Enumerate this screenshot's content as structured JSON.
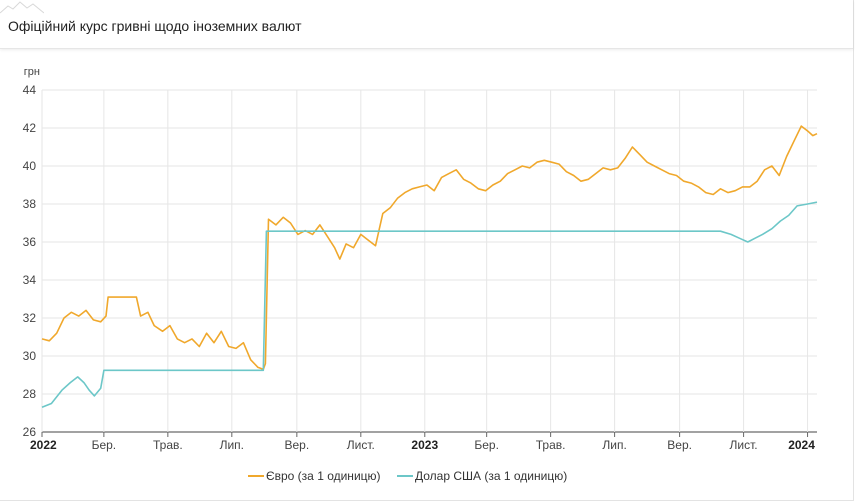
{
  "header": {
    "title": "Офіційний курс гривні щодо іноземних валют"
  },
  "colors": {
    "eur": "#f0a82c",
    "usd": "#6cc7c8",
    "grid": "#e6e6e6",
    "axis": "#444444"
  },
  "chart_data": {
    "type": "line",
    "title": "Офіційний курс гривні щодо іноземних валют",
    "ylabel": "грн",
    "xlabel": "",
    "ylim": [
      26,
      44
    ],
    "yticks": [
      26,
      28,
      30,
      32,
      34,
      36,
      38,
      40,
      42,
      44
    ],
    "xlim": [
      "2022-01-01",
      "2024-01-10"
    ],
    "xticks": [
      {
        "date": "2022-01-01",
        "label": "2022",
        "bold": true
      },
      {
        "date": "2022-03-01",
        "label": "Бер.",
        "bold": false
      },
      {
        "date": "2022-05-01",
        "label": "Трав.",
        "bold": false
      },
      {
        "date": "2022-07-01",
        "label": "Лип.",
        "bold": false
      },
      {
        "date": "2022-09-01",
        "label": "Вер.",
        "bold": false
      },
      {
        "date": "2022-11-01",
        "label": "Лист.",
        "bold": false
      },
      {
        "date": "2023-01-01",
        "label": "2023",
        "bold": true
      },
      {
        "date": "2023-03-01",
        "label": "Бер.",
        "bold": false
      },
      {
        "date": "2023-05-01",
        "label": "Трав.",
        "bold": false
      },
      {
        "date": "2023-07-01",
        "label": "Лип.",
        "bold": false
      },
      {
        "date": "2023-09-01",
        "label": "Вер.",
        "bold": false
      },
      {
        "date": "2023-11-01",
        "label": "Лист.",
        "bold": false
      },
      {
        "date": "2024-01-01",
        "label": "2024",
        "bold": true
      }
    ],
    "grid": true,
    "legend_position": "bottom-center",
    "series": [
      {
        "name": "Євро (за 1 одиницю)",
        "color": "#f0a82c",
        "points": [
          [
            "2022-01-01",
            30.9
          ],
          [
            "2022-01-08",
            30.8
          ],
          [
            "2022-01-15",
            31.2
          ],
          [
            "2022-01-22",
            32.0
          ],
          [
            "2022-01-29",
            32.3
          ],
          [
            "2022-02-05",
            32.1
          ],
          [
            "2022-02-12",
            32.4
          ],
          [
            "2022-02-19",
            31.9
          ],
          [
            "2022-02-26",
            31.8
          ],
          [
            "2022-03-03",
            32.1
          ],
          [
            "2022-03-05",
            33.1
          ],
          [
            "2022-03-20",
            33.1
          ],
          [
            "2022-04-01",
            33.1
          ],
          [
            "2022-04-05",
            32.1
          ],
          [
            "2022-04-12",
            32.3
          ],
          [
            "2022-04-18",
            31.6
          ],
          [
            "2022-04-26",
            31.3
          ],
          [
            "2022-05-03",
            31.6
          ],
          [
            "2022-05-10",
            30.9
          ],
          [
            "2022-05-17",
            30.7
          ],
          [
            "2022-05-24",
            30.9
          ],
          [
            "2022-05-31",
            30.5
          ],
          [
            "2022-06-07",
            31.2
          ],
          [
            "2022-06-14",
            30.7
          ],
          [
            "2022-06-21",
            31.3
          ],
          [
            "2022-06-28",
            30.5
          ],
          [
            "2022-07-05",
            30.4
          ],
          [
            "2022-07-12",
            30.7
          ],
          [
            "2022-07-19",
            29.8
          ],
          [
            "2022-07-26",
            29.4
          ],
          [
            "2022-07-31",
            29.3
          ],
          [
            "2022-08-02",
            29.6
          ],
          [
            "2022-08-05",
            37.2
          ],
          [
            "2022-08-12",
            36.9
          ],
          [
            "2022-08-19",
            37.3
          ],
          [
            "2022-08-26",
            37.0
          ],
          [
            "2022-09-02",
            36.4
          ],
          [
            "2022-09-09",
            36.6
          ],
          [
            "2022-09-16",
            36.4
          ],
          [
            "2022-09-23",
            36.9
          ],
          [
            "2022-09-30",
            36.3
          ],
          [
            "2022-10-07",
            35.7
          ],
          [
            "2022-10-12",
            35.1
          ],
          [
            "2022-10-18",
            35.9
          ],
          [
            "2022-10-25",
            35.7
          ],
          [
            "2022-11-01",
            36.4
          ],
          [
            "2022-11-08",
            36.1
          ],
          [
            "2022-11-15",
            35.8
          ],
          [
            "2022-11-22",
            37.5
          ],
          [
            "2022-11-29",
            37.8
          ],
          [
            "2022-12-06",
            38.3
          ],
          [
            "2022-12-13",
            38.6
          ],
          [
            "2022-12-20",
            38.8
          ],
          [
            "2022-12-27",
            38.9
          ],
          [
            "2023-01-03",
            39.0
          ],
          [
            "2023-01-10",
            38.7
          ],
          [
            "2023-01-17",
            39.4
          ],
          [
            "2023-01-24",
            39.6
          ],
          [
            "2023-01-31",
            39.8
          ],
          [
            "2023-02-07",
            39.3
          ],
          [
            "2023-02-14",
            39.1
          ],
          [
            "2023-02-21",
            38.8
          ],
          [
            "2023-02-28",
            38.7
          ],
          [
            "2023-03-07",
            39.0
          ],
          [
            "2023-03-14",
            39.2
          ],
          [
            "2023-03-21",
            39.6
          ],
          [
            "2023-03-28",
            39.8
          ],
          [
            "2023-04-04",
            40.0
          ],
          [
            "2023-04-11",
            39.9
          ],
          [
            "2023-04-18",
            40.2
          ],
          [
            "2023-04-25",
            40.3
          ],
          [
            "2023-05-02",
            40.2
          ],
          [
            "2023-05-09",
            40.1
          ],
          [
            "2023-05-16",
            39.7
          ],
          [
            "2023-05-23",
            39.5
          ],
          [
            "2023-05-30",
            39.2
          ],
          [
            "2023-06-06",
            39.3
          ],
          [
            "2023-06-13",
            39.6
          ],
          [
            "2023-06-20",
            39.9
          ],
          [
            "2023-06-27",
            39.8
          ],
          [
            "2023-07-04",
            39.9
          ],
          [
            "2023-07-11",
            40.4
          ],
          [
            "2023-07-18",
            41.0
          ],
          [
            "2023-07-25",
            40.6
          ],
          [
            "2023-08-01",
            40.2
          ],
          [
            "2023-08-08",
            40.0
          ],
          [
            "2023-08-15",
            39.8
          ],
          [
            "2023-08-22",
            39.6
          ],
          [
            "2023-08-29",
            39.5
          ],
          [
            "2023-09-05",
            39.2
          ],
          [
            "2023-09-12",
            39.1
          ],
          [
            "2023-09-19",
            38.9
          ],
          [
            "2023-09-26",
            38.6
          ],
          [
            "2023-10-03",
            38.5
          ],
          [
            "2023-10-10",
            38.8
          ],
          [
            "2023-10-17",
            38.6
          ],
          [
            "2023-10-24",
            38.7
          ],
          [
            "2023-10-31",
            38.9
          ],
          [
            "2023-11-07",
            38.9
          ],
          [
            "2023-11-14",
            39.2
          ],
          [
            "2023-11-21",
            39.8
          ],
          [
            "2023-11-28",
            40.0
          ],
          [
            "2023-12-05",
            39.5
          ],
          [
            "2023-12-12",
            40.5
          ],
          [
            "2023-12-19",
            41.3
          ],
          [
            "2023-12-26",
            42.1
          ],
          [
            "2024-01-02",
            41.8
          ],
          [
            "2024-01-06",
            41.6
          ],
          [
            "2024-01-10",
            41.7
          ]
        ]
      },
      {
        "name": "Долар США (за 1 одиницю)",
        "color": "#6cc7c8",
        "points": [
          [
            "2022-01-01",
            27.3
          ],
          [
            "2022-01-10",
            27.5
          ],
          [
            "2022-01-20",
            28.2
          ],
          [
            "2022-01-28",
            28.6
          ],
          [
            "2022-02-04",
            28.9
          ],
          [
            "2022-02-10",
            28.6
          ],
          [
            "2022-02-15",
            28.2
          ],
          [
            "2022-02-20",
            27.9
          ],
          [
            "2022-02-26",
            28.3
          ],
          [
            "2022-03-01",
            29.25
          ],
          [
            "2022-07-20",
            29.25
          ],
          [
            "2022-07-31",
            29.25
          ],
          [
            "2022-08-03",
            36.57
          ],
          [
            "2023-10-10",
            36.57
          ],
          [
            "2023-10-20",
            36.4
          ],
          [
            "2023-10-28",
            36.2
          ],
          [
            "2023-11-05",
            36.0
          ],
          [
            "2023-11-12",
            36.2
          ],
          [
            "2023-11-19",
            36.4
          ],
          [
            "2023-11-28",
            36.7
          ],
          [
            "2023-12-06",
            37.1
          ],
          [
            "2023-12-14",
            37.4
          ],
          [
            "2023-12-22",
            37.9
          ],
          [
            "2024-01-01",
            38.0
          ],
          [
            "2024-01-10",
            38.1
          ]
        ]
      }
    ]
  }
}
